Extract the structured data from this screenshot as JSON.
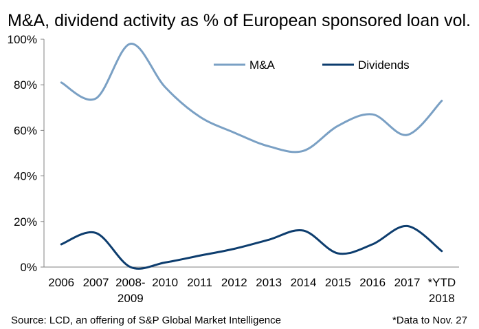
{
  "chart_data": {
    "type": "line",
    "title": "M&A, dividend activity as % of European sponsored loan vol.",
    "categories": [
      [
        "2006"
      ],
      [
        "2007"
      ],
      [
        "2008-",
        "2009"
      ],
      [
        "2010"
      ],
      [
        "2011"
      ],
      [
        "2012"
      ],
      [
        "2013"
      ],
      [
        "2014"
      ],
      [
        "2015"
      ],
      [
        "2016"
      ],
      [
        "2017"
      ],
      [
        "*YTD",
        "2018"
      ]
    ],
    "yticks": [
      "0%",
      "20%",
      "40%",
      "60%",
      "80%",
      "100%"
    ],
    "ylim": [
      0,
      100
    ],
    "grid": false,
    "legend": "top-right",
    "series": [
      {
        "name": "M&A",
        "color": "#7aa0c4",
        "values": [
          81,
          74,
          98,
          79,
          66,
          59,
          53,
          51,
          62,
          67,
          58,
          73
        ]
      },
      {
        "name": "Dividends",
        "color": "#0d3d6e",
        "values": [
          10,
          15,
          0,
          2,
          5,
          8,
          12,
          16,
          6,
          10,
          18,
          7
        ]
      }
    ]
  },
  "footer": {
    "source": "Source: LCD, an offering of S&P Global Market Intelligence",
    "note": "*Data to Nov. 27"
  }
}
